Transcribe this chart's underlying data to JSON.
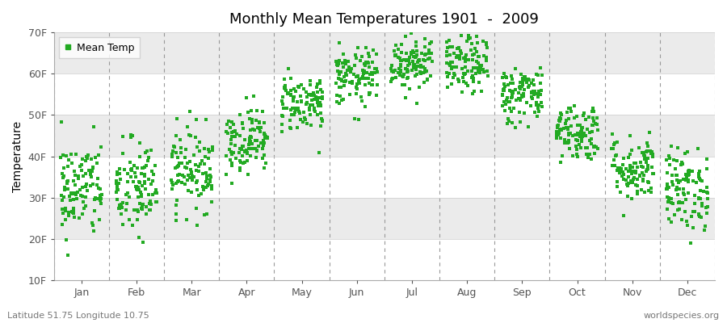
{
  "title": "Monthly Mean Temperatures 1901  -  2009",
  "ylabel": "Temperature",
  "subtitle_left": "Latitude 51.75 Longitude 10.75",
  "subtitle_right": "worldspecies.org",
  "ylim": [
    10,
    70
  ],
  "yticks": [
    10,
    20,
    30,
    40,
    50,
    60,
    70
  ],
  "ytick_labels": [
    "10F",
    "20F",
    "30F",
    "40F",
    "50F",
    "60F",
    "70F"
  ],
  "months": [
    "Jan",
    "Feb",
    "Mar",
    "Apr",
    "May",
    "Jun",
    "Jul",
    "Aug",
    "Sep",
    "Oct",
    "Nov",
    "Dec"
  ],
  "point_color": "#22AA22",
  "background_color": "#FFFFFF",
  "band_color_odd": "#EBEBEB",
  "marker_size": 2.5,
  "n_years": 109,
  "seed": 42,
  "mean_temps_f": [
    32,
    32,
    37,
    44,
    53,
    59,
    63,
    62,
    55,
    46,
    37,
    32
  ],
  "std_temps_f": [
    6.0,
    6.0,
    5.0,
    4.0,
    3.5,
    3.5,
    3.5,
    3.5,
    3.5,
    3.5,
    4.0,
    5.0
  ]
}
